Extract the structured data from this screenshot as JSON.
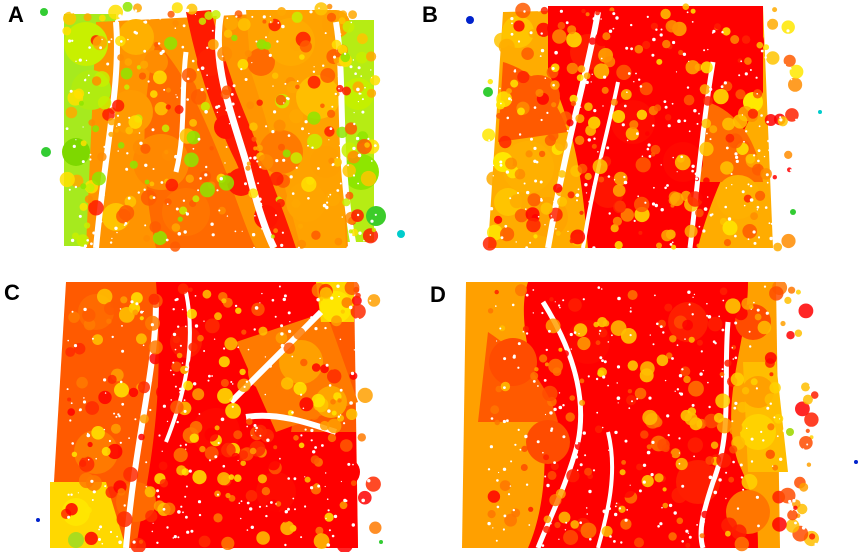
{
  "figure": {
    "panels": [
      {
        "label": "A",
        "palette": [
          "#ff1a00",
          "#ff5a00",
          "#ff8c00",
          "#ffa800",
          "#ffc400",
          "#ffe000",
          "#c8f000",
          "#8ee600"
        ]
      },
      {
        "label": "B",
        "palette": [
          "#ff0000",
          "#ff2200",
          "#ff5a00",
          "#ff8c00",
          "#ffac00",
          "#ffc400",
          "#ffe800"
        ]
      },
      {
        "label": "C",
        "palette": [
          "#ff0000",
          "#ff2a00",
          "#ff5a00",
          "#ff7a00",
          "#ffa000",
          "#ffc400",
          "#ffe600"
        ]
      },
      {
        "label": "D",
        "palette": [
          "#ff0000",
          "#ff1e00",
          "#ff4c00",
          "#ff7600",
          "#ffa000",
          "#ffbe00",
          "#ffd200"
        ]
      }
    ],
    "colors": {
      "background": "#ffffff",
      "crack": "#ffffff",
      "outlier_blue": "#0022cc",
      "outlier_cyan": "#00cccc",
      "outlier_green": "#33cc33"
    }
  }
}
